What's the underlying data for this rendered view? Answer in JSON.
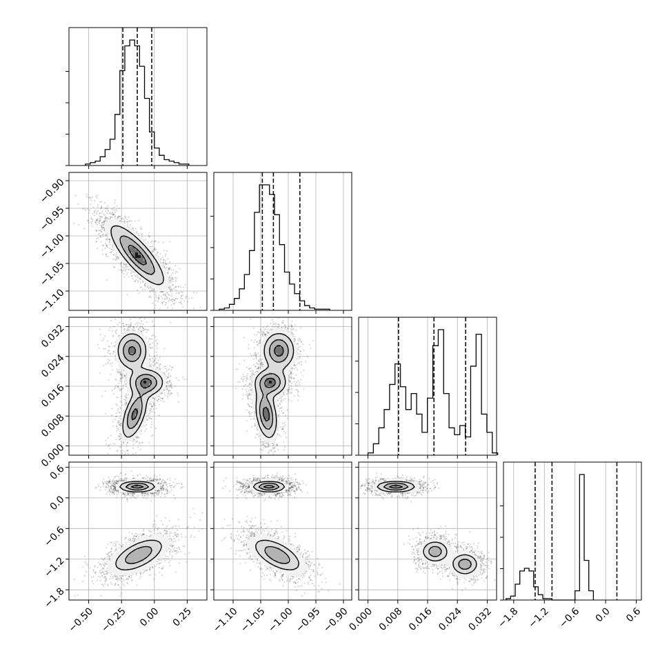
{
  "chart_data": {
    "type": "corner",
    "grid": true,
    "parameters": [
      {
        "range": [
          -0.65,
          0.4
        ],
        "ticks": [
          -0.5,
          -0.25,
          0.0,
          0.25
        ],
        "tick_labels": [
          "−0.50",
          "−0.25",
          "0.00",
          "0.25"
        ]
      },
      {
        "range": [
          -1.135,
          -0.885
        ],
        "ticks": [
          -1.1,
          -1.05,
          -1.0,
          -0.95,
          -0.9
        ],
        "tick_labels": [
          "−1.10",
          "−1.05",
          "−1.00",
          "−0.95",
          "−0.90"
        ]
      },
      {
        "range": [
          -0.0025,
          0.0345
        ],
        "ticks": [
          0.0,
          0.008,
          0.016,
          0.024,
          0.032
        ],
        "tick_labels": [
          "0.000",
          "0.008",
          "0.016",
          "0.024",
          "0.032"
        ]
      },
      {
        "range": [
          -2.0,
          0.7
        ],
        "ticks": [
          -1.8,
          -1.2,
          -0.6,
          0.0,
          0.6
        ],
        "tick_labels": [
          "−1.8",
          "−1.2",
          "−0.6",
          "0.0",
          "0.6"
        ]
      }
    ],
    "histograms": [
      {
        "edges_start": -0.525,
        "bin_width": 0.0375,
        "counts": [
          1,
          2,
          3,
          6,
          11,
          18,
          35,
          65,
          82,
          86,
          82,
          68,
          46,
          23,
          12,
          7,
          4,
          3,
          2,
          1,
          1
        ],
        "quantiles": [
          -0.24,
          -0.13,
          -0.02
        ]
      },
      {
        "edges_start": -1.125,
        "bin_width": 0.00909,
        "counts": [
          1,
          2,
          5,
          10,
          18,
          30,
          50,
          82,
          105,
          105,
          97,
          80,
          55,
          32,
          22,
          14,
          8,
          4,
          2,
          1,
          1,
          1
        ],
        "quantiles": [
          -1.047,
          -1.027,
          -0.979
        ]
      },
      {
        "edges_start": 0.0,
        "bin_width": 0.00145,
        "counts": [
          1,
          5,
          12,
          20,
          31,
          40,
          30,
          20,
          27,
          18,
          10,
          25,
          48,
          55,
          27,
          12,
          9,
          13,
          8,
          39,
          53,
          18,
          10,
          1
        ],
        "quantiles": [
          0.0082,
          0.0177,
          0.0262
        ]
      },
      {
        "edges_start": -1.95,
        "bin_width": 0.09,
        "counts": [
          1,
          3,
          12,
          22,
          24,
          22,
          10,
          4,
          1,
          1,
          0,
          0,
          0,
          0,
          0,
          7,
          95,
          30,
          7
        ],
        "quantiles": [
          -1.38,
          -1.05,
          0.22
        ]
      }
    ],
    "panels_2d": [
      {
        "x_param": 0,
        "y_param": 1,
        "modes": [
          {
            "x": -0.13,
            "y": -1.035,
            "sx": 0.12,
            "sy": 0.032,
            "rho": -0.82,
            "w": 1.0
          }
        ],
        "levels": [
          0.25,
          0.55,
          0.85
        ]
      },
      {
        "x_param": 0,
        "y_param": 2,
        "modes": [
          {
            "x": -0.17,
            "y": 0.0255,
            "sx": 0.065,
            "sy": 0.0028,
            "rho": 0.0,
            "w": 1.0
          },
          {
            "x": -0.06,
            "y": 0.017,
            "sx": 0.075,
            "sy": 0.002,
            "rho": 0.0,
            "w": 1.0
          },
          {
            "x": -0.15,
            "y": 0.0085,
            "sx": 0.055,
            "sy": 0.0038,
            "rho": 0.55,
            "w": 1.0
          }
        ],
        "levels": [
          0.25,
          0.55,
          0.85
        ]
      },
      {
        "x_param": 0,
        "y_param": 3,
        "modes": [
          {
            "x": -0.13,
            "y": 0.22,
            "sx": 0.085,
            "sy": 0.065,
            "rho": 0.0,
            "w": 1.0
          },
          {
            "x": -0.12,
            "y": -1.12,
            "sx": 0.12,
            "sy": 0.2,
            "rho": 0.6,
            "w": 0.85
          }
        ],
        "levels": [
          0.3,
          0.6,
          0.87
        ]
      },
      {
        "x_param": 1,
        "y_param": 2,
        "modes": [
          {
            "x": -1.017,
            "y": 0.0255,
            "sx": 0.016,
            "sy": 0.0028,
            "rho": 0.0,
            "w": 1.0
          },
          {
            "x": -1.032,
            "y": 0.017,
            "sx": 0.016,
            "sy": 0.002,
            "rho": 0.0,
            "w": 1.0
          },
          {
            "x": -1.04,
            "y": 0.0085,
            "sx": 0.011,
            "sy": 0.0038,
            "rho": -0.3,
            "w": 1.0
          }
        ],
        "levels": [
          0.25,
          0.55,
          0.85
        ]
      },
      {
        "x_param": 1,
        "y_param": 3,
        "modes": [
          {
            "x": -1.035,
            "y": 0.22,
            "sx": 0.018,
            "sy": 0.065,
            "rho": 0.0,
            "w": 1.0
          },
          {
            "x": -1.02,
            "y": -1.12,
            "sx": 0.027,
            "sy": 0.2,
            "rho": -0.6,
            "w": 0.85
          }
        ],
        "levels": [
          0.3,
          0.6,
          0.87
        ]
      },
      {
        "x_param": 2,
        "y_param": 3,
        "modes": [
          {
            "x": 0.0075,
            "y": 0.22,
            "sx": 0.0032,
            "sy": 0.065,
            "rho": 0.0,
            "w": 1.0
          },
          {
            "x": 0.018,
            "y": -1.05,
            "sx": 0.0022,
            "sy": 0.13,
            "rho": 0.0,
            "w": 0.8
          },
          {
            "x": 0.026,
            "y": -1.3,
            "sx": 0.0022,
            "sy": 0.13,
            "rho": 0.0,
            "w": 0.8
          }
        ],
        "levels": [
          0.3,
          0.6,
          0.87
        ]
      }
    ]
  }
}
